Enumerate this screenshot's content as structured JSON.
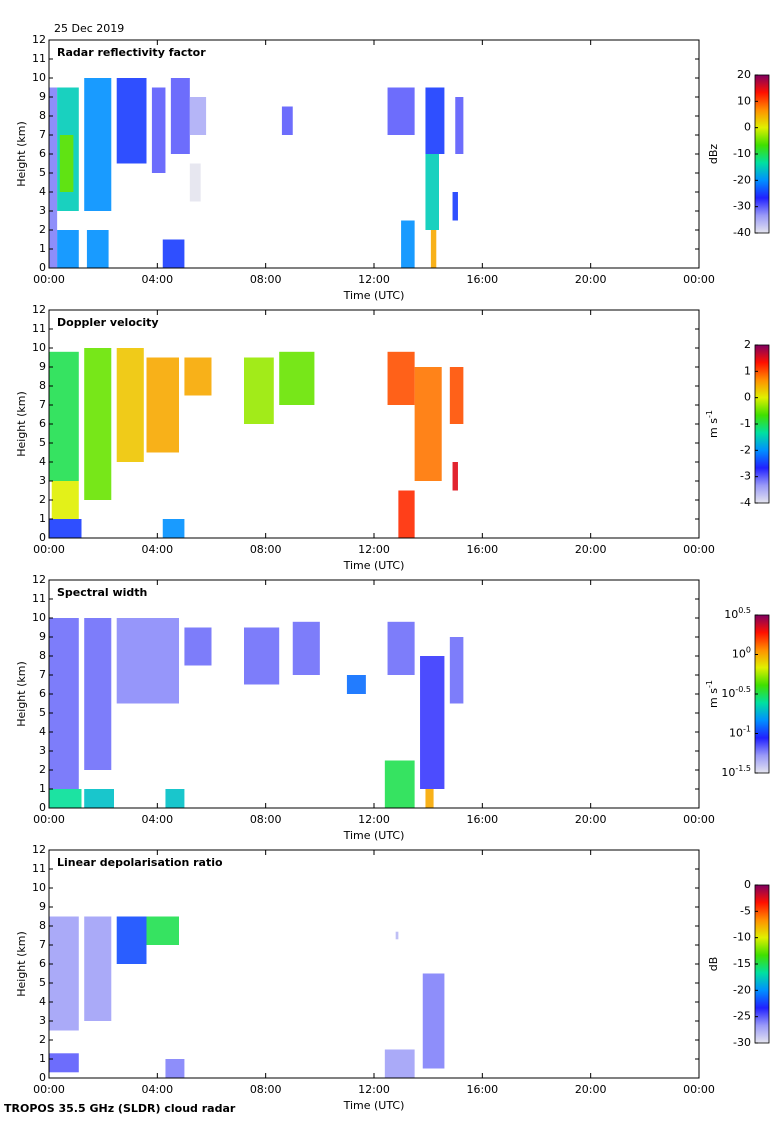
{
  "date": "25 Dec 2019",
  "footer": "TROPOS 35.5 GHz (SLDR) cloud radar",
  "colormap": [
    "#e4e4ee",
    "#9a9af8",
    "#2020ff",
    "#0090ff",
    "#00e0a0",
    "#40e000",
    "#e0f000",
    "#ff9000",
    "#ff1000",
    "#800060"
  ],
  "chart_data": [
    {
      "type": "heatmap",
      "title": "Radar reflectivity factor",
      "xlabel": "Time (UTC)",
      "ylabel": "Height (km)",
      "xlim": [
        0,
        24
      ],
      "xticks": [
        {
          "value": 0,
          "label": "00:00"
        },
        {
          "value": 4,
          "label": "04:00"
        },
        {
          "value": 8,
          "label": "08:00"
        },
        {
          "value": 12,
          "label": "12:00"
        },
        {
          "value": 16,
          "label": "16:00"
        },
        {
          "value": 20,
          "label": "20:00"
        },
        {
          "value": 24,
          "label": "00:00"
        }
      ],
      "ylim": [
        0,
        12
      ],
      "yticks": [
        0,
        1,
        2,
        3,
        4,
        5,
        6,
        7,
        8,
        9,
        10,
        11,
        12
      ],
      "colorbar": {
        "unit": "dBz",
        "clim": [
          -40,
          20
        ],
        "cticks": [
          -40,
          -30,
          -20,
          -10,
          0,
          10,
          20
        ]
      },
      "patches": [
        {
          "t": [
            0,
            0.3
          ],
          "h": [
            0,
            9.5
          ],
          "v": -32
        },
        {
          "t": [
            0.3,
            1.1
          ],
          "h": [
            3,
            9.5
          ],
          "v": -15
        },
        {
          "t": [
            0.4,
            0.9
          ],
          "h": [
            4,
            7
          ],
          "v": -5
        },
        {
          "t": [
            0.3,
            1.1
          ],
          "h": [
            0,
            2
          ],
          "v": -20
        },
        {
          "t": [
            1.3,
            2.3
          ],
          "h": [
            3,
            10
          ],
          "v": -20
        },
        {
          "t": [
            1.4,
            2.2
          ],
          "h": [
            0,
            2
          ],
          "v": -20
        },
        {
          "t": [
            2.5,
            3.6
          ],
          "h": [
            5.5,
            10
          ],
          "v": -25
        },
        {
          "t": [
            3.8,
            4.3
          ],
          "h": [
            5,
            9.5
          ],
          "v": -30
        },
        {
          "t": [
            4.2,
            5
          ],
          "h": [
            0,
            1.5
          ],
          "v": -25
        },
        {
          "t": [
            4.5,
            5.2
          ],
          "h": [
            6,
            10
          ],
          "v": -30
        },
        {
          "t": [
            5.2,
            5.8
          ],
          "h": [
            7,
            9
          ],
          "v": -35
        },
        {
          "t": [
            5.2,
            5.6
          ],
          "h": [
            3.5,
            5.5
          ],
          "v": -40
        },
        {
          "t": [
            8.6,
            9
          ],
          "h": [
            7,
            8.5
          ],
          "v": -30
        },
        {
          "t": [
            12.5,
            13.5
          ],
          "h": [
            7,
            9.5
          ],
          "v": -30
        },
        {
          "t": [
            13,
            13.5
          ],
          "h": [
            0,
            2.5
          ],
          "v": -20
        },
        {
          "t": [
            13.9,
            14.6
          ],
          "h": [
            6,
            9.5
          ],
          "v": -25
        },
        {
          "t": [
            13.9,
            14.4
          ],
          "h": [
            2,
            6
          ],
          "v": -15
        },
        {
          "t": [
            14.1,
            14.3
          ],
          "h": [
            0,
            2
          ],
          "v": 5
        },
        {
          "t": [
            15,
            15.3
          ],
          "h": [
            6,
            9
          ],
          "v": -30
        },
        {
          "t": [
            14.9,
            15.1
          ],
          "h": [
            2.5,
            4
          ],
          "v": -25
        }
      ]
    },
    {
      "type": "heatmap",
      "title": "Doppler velocity",
      "xlabel": "Time (UTC)",
      "ylabel": "Height (km)",
      "xlim": [
        0,
        24
      ],
      "xticks": [
        {
          "value": 0,
          "label": "00:00"
        },
        {
          "value": 4,
          "label": "04:00"
        },
        {
          "value": 8,
          "label": "08:00"
        },
        {
          "value": 12,
          "label": "12:00"
        },
        {
          "value": 16,
          "label": "16:00"
        },
        {
          "value": 20,
          "label": "20:00"
        },
        {
          "value": 24,
          "label": "00:00"
        }
      ],
      "ylim": [
        0,
        12
      ],
      "yticks": [
        0,
        1,
        2,
        3,
        4,
        5,
        6,
        7,
        8,
        9,
        10,
        11,
        12
      ],
      "colorbar": {
        "unit": "m s",
        "unit_exp": "-1",
        "clim": [
          -4,
          2
        ],
        "cticks": [
          -4,
          -3,
          -2,
          -1,
          0,
          1,
          2
        ]
      },
      "patches": [
        {
          "t": [
            0,
            1.1
          ],
          "h": [
            3,
            9.8
          ],
          "v": -1
        },
        {
          "t": [
            0.1,
            1.1
          ],
          "h": [
            1,
            3
          ],
          "v": 0
        },
        {
          "t": [
            0,
            1.2
          ],
          "h": [
            0,
            1
          ],
          "v": -2.5
        },
        {
          "t": [
            1.3,
            2.3
          ],
          "h": [
            2,
            10
          ],
          "v": -0.5
        },
        {
          "t": [
            2.5,
            3.5
          ],
          "h": [
            4,
            10
          ],
          "v": 0.3
        },
        {
          "t": [
            3.6,
            4.8
          ],
          "h": [
            4.5,
            9.5
          ],
          "v": 0.5
        },
        {
          "t": [
            4.2,
            5
          ],
          "h": [
            0,
            1
          ],
          "v": -2
        },
        {
          "t": [
            5,
            6
          ],
          "h": [
            7.5,
            9.5
          ],
          "v": 0.5
        },
        {
          "t": [
            7.2,
            8.3
          ],
          "h": [
            6,
            9.5
          ],
          "v": -0.3
        },
        {
          "t": [
            8.5,
            9.8
          ],
          "h": [
            7,
            9.8
          ],
          "v": -0.5
        },
        {
          "t": [
            12.5,
            13.5
          ],
          "h": [
            7,
            9.8
          ],
          "v": 1
        },
        {
          "t": [
            13.5,
            14.5
          ],
          "h": [
            3,
            9
          ],
          "v": 0.8
        },
        {
          "t": [
            12.9,
            13.5
          ],
          "h": [
            0,
            2.5
          ],
          "v": 1.2
        },
        {
          "t": [
            14.8,
            15.3
          ],
          "h": [
            6,
            9
          ],
          "v": 1
        },
        {
          "t": [
            14.9,
            15.1
          ],
          "h": [
            2.5,
            4
          ],
          "v": 1.5
        }
      ]
    },
    {
      "type": "heatmap",
      "title": "Spectral width",
      "xlabel": "Time (UTC)",
      "ylabel": "Height (km)",
      "xlim": [
        0,
        24
      ],
      "xticks": [
        {
          "value": 0,
          "label": "00:00"
        },
        {
          "value": 4,
          "label": "04:00"
        },
        {
          "value": 8,
          "label": "08:00"
        },
        {
          "value": 12,
          "label": "12:00"
        },
        {
          "value": 16,
          "label": "16:00"
        },
        {
          "value": 20,
          "label": "20:00"
        },
        {
          "value": 24,
          "label": "00:00"
        }
      ],
      "ylim": [
        0,
        12
      ],
      "yticks": [
        0,
        1,
        2,
        3,
        4,
        5,
        6,
        7,
        8,
        9,
        10,
        11,
        12
      ],
      "colorbar": {
        "unit": "m s",
        "unit_exp": "-1",
        "log": true,
        "clim": [
          -1.5,
          0.5
        ],
        "cticks": [
          {
            "value": -1.5,
            "base": "10",
            "exp": "-1.5"
          },
          {
            "value": -1,
            "base": "10",
            "exp": "-1"
          },
          {
            "value": -0.5,
            "base": "10",
            "exp": "-0.5"
          },
          {
            "value": 0,
            "base": "10",
            "exp": "0"
          },
          {
            "value": 0.5,
            "base": "10",
            "exp": "0.5"
          }
        ]
      },
      "patches": [
        {
          "t": [
            0,
            1.1
          ],
          "h": [
            1,
            10
          ],
          "v": -1.2
        },
        {
          "t": [
            0,
            1.2
          ],
          "h": [
            0,
            1
          ],
          "v": -0.6
        },
        {
          "t": [
            1.3,
            2.3
          ],
          "h": [
            2,
            10
          ],
          "v": -1.2
        },
        {
          "t": [
            1.3,
            2.4
          ],
          "h": [
            0,
            1
          ],
          "v": -0.7
        },
        {
          "t": [
            2.5,
            4.8
          ],
          "h": [
            5.5,
            10
          ],
          "v": -1.25
        },
        {
          "t": [
            4.3,
            5
          ],
          "h": [
            0,
            1
          ],
          "v": -0.7
        },
        {
          "t": [
            5,
            6
          ],
          "h": [
            7.5,
            9.5
          ],
          "v": -1.2
        },
        {
          "t": [
            7.2,
            8.5
          ],
          "h": [
            6.5,
            9.5
          ],
          "v": -1.2
        },
        {
          "t": [
            9,
            10
          ],
          "h": [
            7,
            9.8
          ],
          "v": -1.2
        },
        {
          "t": [
            11,
            11.7
          ],
          "h": [
            6,
            7
          ],
          "v": -0.9
        },
        {
          "t": [
            12.4,
            13.5
          ],
          "h": [
            0,
            2.5
          ],
          "v": -0.5
        },
        {
          "t": [
            12.5,
            13.5
          ],
          "h": [
            7,
            9.8
          ],
          "v": -1.2
        },
        {
          "t": [
            13.7,
            14.6
          ],
          "h": [
            1,
            8
          ],
          "v": -1.1
        },
        {
          "t": [
            13.9,
            14.2
          ],
          "h": [
            0,
            1
          ],
          "v": 0
        },
        {
          "t": [
            14.8,
            15.3
          ],
          "h": [
            5.5,
            9
          ],
          "v": -1.2
        }
      ]
    },
    {
      "type": "heatmap",
      "title": "Linear depolarisation ratio",
      "xlabel": "Time (UTC)",
      "ylabel": "Height (km)",
      "xlim": [
        0,
        24
      ],
      "xticks": [
        {
          "value": 0,
          "label": "00:00"
        },
        {
          "value": 4,
          "label": "04:00"
        },
        {
          "value": 8,
          "label": "08:00"
        },
        {
          "value": 12,
          "label": "12:00"
        },
        {
          "value": 16,
          "label": "16:00"
        },
        {
          "value": 20,
          "label": "20:00"
        },
        {
          "value": 24,
          "label": "00:00"
        }
      ],
      "ylim": [
        0,
        12
      ],
      "yticks": [
        0,
        1,
        2,
        3,
        4,
        5,
        6,
        7,
        8,
        9,
        10,
        11,
        12
      ],
      "colorbar": {
        "unit": "dB",
        "clim": [
          -30,
          0
        ],
        "cticks": [
          -30,
          -25,
          -20,
          -15,
          -10,
          -5,
          0
        ]
      },
      "patches": [
        {
          "t": [
            0,
            1.1
          ],
          "h": [
            2.5,
            8.5
          ],
          "v": -27
        },
        {
          "t": [
            0,
            1.1
          ],
          "h": [
            0.3,
            1.3
          ],
          "v": -25
        },
        {
          "t": [
            1.3,
            2.3
          ],
          "h": [
            3,
            8.5
          ],
          "v": -27
        },
        {
          "t": [
            2.5,
            3.6
          ],
          "h": [
            6,
            8.5
          ],
          "v": -22
        },
        {
          "t": [
            3.6,
            4.8
          ],
          "h": [
            7,
            8.5
          ],
          "v": -15
        },
        {
          "t": [
            4.3,
            5
          ],
          "h": [
            0,
            1
          ],
          "v": -26
        },
        {
          "t": [
            12.4,
            13.5
          ],
          "h": [
            0,
            1.5
          ],
          "v": -27
        },
        {
          "t": [
            13.8,
            14.6
          ],
          "h": [
            0.5,
            5.5
          ],
          "v": -26
        },
        {
          "t": [
            12.8,
            12.9
          ],
          "h": [
            7.3,
            7.7
          ],
          "v": -28
        }
      ]
    }
  ]
}
